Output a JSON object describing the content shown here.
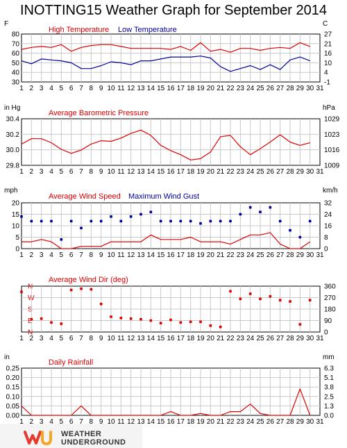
{
  "page_title": "INOTTING15 Weather Graph for September 2014",
  "logo": {
    "line1": "WEATHER",
    "line2": "UNDERGROUND"
  },
  "colors": {
    "red": "#dd0000",
    "blue": "#000099",
    "axis": "#000000",
    "grid": "#c8c8c8"
  },
  "chart_data": [
    {
      "type": "line",
      "title": "High Temperature / Low Temperature",
      "left_unit": "F",
      "right_unit": "C",
      "ylim": [
        30,
        80
      ],
      "yticks_left": [
        "80",
        "70",
        "60",
        "50",
        "40",
        "30"
      ],
      "yticks_right": [
        "27",
        "21",
        "16",
        "10",
        "4",
        "-1"
      ],
      "x_ticks": [
        "1",
        "2",
        "3",
        "4",
        "5",
        "6",
        "7",
        "8",
        "9",
        "10",
        "11",
        "12",
        "13",
        "14",
        "15",
        "16",
        "17",
        "18",
        "19",
        "20",
        "21",
        "22",
        "23",
        "24",
        "25",
        "26",
        "27",
        "28",
        "29",
        "30",
        "31"
      ],
      "series": [
        {
          "name": "High Temperature",
          "color": "#dd0000",
          "x": [
            1,
            2,
            3,
            4,
            5,
            6,
            7,
            8,
            9,
            10,
            11,
            12,
            13,
            14,
            15,
            16,
            17,
            18,
            19,
            20,
            21,
            22,
            23,
            24,
            25,
            26,
            27,
            28,
            29,
            30
          ],
          "values": [
            64,
            66,
            67,
            66,
            69,
            62,
            66,
            68,
            69,
            69,
            67,
            65,
            65,
            65,
            65,
            64,
            67,
            63,
            71,
            62,
            64,
            61,
            65,
            65,
            63,
            65,
            66,
            65,
            71,
            67
          ]
        },
        {
          "name": "Low Temperature",
          "color": "#000099",
          "x": [
            1,
            2,
            3,
            4,
            5,
            6,
            7,
            8,
            9,
            10,
            11,
            12,
            13,
            14,
            15,
            16,
            17,
            18,
            19,
            20,
            21,
            22,
            23,
            24,
            25,
            26,
            27,
            28,
            29,
            30
          ],
          "values": [
            52,
            49,
            54,
            53,
            52,
            50,
            44,
            44,
            47,
            51,
            50,
            48,
            52,
            52,
            54,
            56,
            56,
            56,
            57,
            55,
            46,
            41,
            44,
            47,
            43,
            48,
            43,
            53,
            56,
            52
          ]
        }
      ]
    },
    {
      "type": "line",
      "title": "Average Barometric Pressure",
      "left_unit": "in Hg",
      "right_unit": "hPa",
      "ylim": [
        29.8,
        30.5
      ],
      "yticks_left": [
        "30.4",
        "30.2",
        "30.0",
        "29.8"
      ],
      "yticks_right": [
        "1029",
        "1023",
        "1016",
        "1009"
      ],
      "x_ticks": [
        "1",
        "2",
        "3",
        "4",
        "5",
        "6",
        "7",
        "8",
        "9",
        "10",
        "11",
        "12",
        "13",
        "14",
        "15",
        "16",
        "17",
        "18",
        "19",
        "20",
        "21",
        "22",
        "23",
        "24",
        "25",
        "26",
        "27",
        "28",
        "29",
        "30",
        "31"
      ],
      "series": [
        {
          "name": "Average Barometric Pressure",
          "color": "#dd0000",
          "x": [
            1,
            2,
            3,
            4,
            5,
            6,
            7,
            8,
            9,
            10,
            11,
            12,
            13,
            14,
            15,
            16,
            17,
            18,
            19,
            20,
            21,
            22,
            23,
            24,
            25,
            26,
            27,
            28,
            29,
            30
          ],
          "values": [
            30.12,
            30.2,
            30.2,
            30.14,
            30.04,
            29.98,
            30.03,
            30.12,
            30.17,
            30.16,
            30.21,
            30.28,
            30.33,
            30.25,
            30.1,
            30.02,
            29.96,
            29.88,
            29.9,
            30.0,
            30.23,
            30.25,
            30.08,
            29.96,
            30.05,
            30.15,
            30.26,
            30.15,
            30.1,
            30.14
          ]
        }
      ]
    },
    {
      "type": "line",
      "title": "Average Wind Speed / Maximum Wind Gust",
      "left_unit": "mph",
      "right_unit": "km/h",
      "ylim": [
        0,
        20
      ],
      "yticks_left": [
        "20",
        "15",
        "10",
        "5",
        "0"
      ],
      "yticks_right": [
        "32",
        "24",
        "16",
        "8",
        "0"
      ],
      "x_ticks": [
        "1",
        "2",
        "3",
        "4",
        "5",
        "6",
        "7",
        "8",
        "9",
        "10",
        "11",
        "12",
        "13",
        "14",
        "15",
        "16",
        "17",
        "18",
        "19",
        "20",
        "21",
        "22",
        "23",
        "24",
        "25",
        "26",
        "27",
        "28",
        "29",
        "30",
        "31"
      ],
      "series": [
        {
          "name": "Average Wind Speed",
          "color": "#dd0000",
          "mark": "line",
          "x": [
            1,
            2,
            3,
            4,
            5,
            6,
            7,
            8,
            9,
            10,
            11,
            12,
            13,
            14,
            15,
            16,
            17,
            18,
            19,
            20,
            21,
            22,
            23,
            24,
            25,
            26,
            27,
            28,
            29,
            30
          ],
          "values": [
            3,
            3,
            4,
            3,
            0,
            0,
            1,
            1,
            1,
            3,
            3,
            3,
            3,
            6,
            4,
            4,
            4,
            5,
            3,
            3,
            3,
            2,
            4,
            6,
            6,
            7,
            2,
            0,
            0,
            3
          ]
        },
        {
          "name": "Maximum Wind Gust",
          "color": "#000099",
          "mark": "dot",
          "x": [
            1,
            2,
            3,
            4,
            5,
            6,
            7,
            8,
            9,
            10,
            11,
            12,
            13,
            14,
            15,
            16,
            17,
            18,
            19,
            20,
            21,
            22,
            23,
            24,
            25,
            26,
            27,
            28,
            29,
            30
          ],
          "values": [
            14,
            12,
            12,
            12,
            4,
            12,
            9,
            12,
            12,
            14,
            12,
            14,
            15,
            16,
            12,
            12,
            12,
            12,
            11,
            12,
            12,
            12,
            15,
            18,
            16,
            18,
            12,
            8,
            5,
            12
          ]
        }
      ]
    },
    {
      "type": "scatter",
      "title": "Average Wind Dir (deg)",
      "left_unit": "",
      "right_unit": "",
      "ylim": [
        0,
        360
      ],
      "yticks_left": [
        "N",
        "W",
        "S",
        "E",
        "N"
      ],
      "yticks_right": [
        "360",
        "270",
        "180",
        "90",
        "0"
      ],
      "x_ticks": [
        "1",
        "2",
        "3",
        "4",
        "5",
        "6",
        "7",
        "8",
        "9",
        "10",
        "11",
        "12",
        "13",
        "14",
        "15",
        "16",
        "17",
        "18",
        "19",
        "20",
        "21",
        "22",
        "23",
        "24",
        "25",
        "26",
        "27",
        "28",
        "29",
        "30",
        "31"
      ],
      "series": [
        {
          "name": "Average Wind Dir (deg)",
          "color": "#dd0000",
          "x": [
            1,
            2,
            3,
            4,
            5,
            6,
            7,
            8,
            9,
            10,
            11,
            12,
            13,
            14,
            15,
            16,
            17,
            18,
            19,
            20,
            21,
            22,
            23,
            24,
            25,
            26,
            27,
            28,
            29,
            30
          ],
          "values": [
            315,
            100,
            105,
            75,
            65,
            330,
            340,
            335,
            220,
            120,
            110,
            105,
            100,
            90,
            70,
            95,
            75,
            80,
            80,
            50,
            40,
            320,
            260,
            300,
            260,
            280,
            250,
            240,
            60,
            250
          ]
        }
      ]
    },
    {
      "type": "line",
      "title": "Daily Rainfall",
      "left_unit": "in",
      "right_unit": "mm",
      "ylim": [
        0,
        0.25
      ],
      "yticks_left": [
        "0.25",
        "0.20",
        "0.15",
        "0.10",
        "0.05",
        "0.00"
      ],
      "yticks_right": [
        "6.3",
        "5.1",
        "3.8",
        "2.5",
        "1.3",
        "0.0"
      ],
      "x_ticks": [
        "1",
        "2",
        "3",
        "4",
        "5",
        "6",
        "7",
        "8",
        "9",
        "10",
        "11",
        "12",
        "13",
        "14",
        "15",
        "16",
        "17",
        "18",
        "19",
        "20",
        "21",
        "22",
        "23",
        "24",
        "25",
        "26",
        "27",
        "28",
        "29",
        "30",
        "31"
      ],
      "series": [
        {
          "name": "Daily Rainfall",
          "color": "#dd0000",
          "x": [
            1,
            2,
            3,
            4,
            5,
            6,
            7,
            8,
            9,
            10,
            11,
            12,
            13,
            14,
            15,
            16,
            17,
            18,
            19,
            20,
            21,
            22,
            23,
            24,
            25,
            26,
            27,
            28,
            29,
            30
          ],
          "values": [
            0.05,
            0,
            0,
            0,
            0,
            0,
            0.05,
            0,
            0,
            0,
            0,
            0,
            0,
            0,
            0,
            0.02,
            0,
            0,
            0.01,
            0,
            0,
            0.02,
            0.02,
            0.06,
            0.01,
            0,
            0,
            0,
            0.14,
            0
          ]
        }
      ]
    }
  ]
}
